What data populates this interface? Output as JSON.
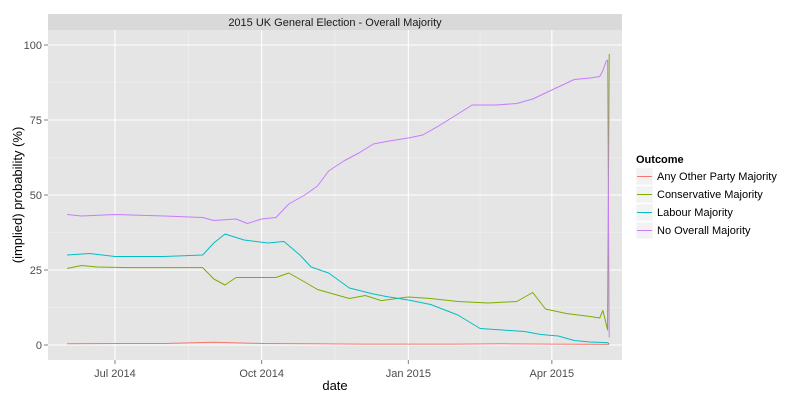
{
  "chart_data": {
    "type": "line",
    "title": "2015 UK General Election - Overall Majority",
    "xlabel": "date",
    "ylabel": "(implied) probability (%)",
    "xlim": [
      "2014-05-20",
      "2015-05-15"
    ],
    "ylim": [
      -5,
      105
    ],
    "xticks": [
      {
        "date": "2014-07-01",
        "label": "Jul 2014"
      },
      {
        "date": "2014-10-01",
        "label": "Oct 2014"
      },
      {
        "date": "2015-01-01",
        "label": "Jan 2015"
      },
      {
        "date": "2015-04-01",
        "label": "Apr 2015"
      }
    ],
    "yticks": [
      0,
      25,
      50,
      75,
      100
    ],
    "grid": true,
    "legend": {
      "title": "Outcome",
      "placement": "right"
    },
    "series": [
      {
        "name": "Any Other Party Majority",
        "color": "#F8766D",
        "points": [
          [
            "2014-06-01",
            0.4
          ],
          [
            "2014-07-01",
            0.5
          ],
          [
            "2014-08-01",
            0.5
          ],
          [
            "2014-09-01",
            0.9
          ],
          [
            "2014-10-01",
            0.5
          ],
          [
            "2014-11-01",
            0.4
          ],
          [
            "2014-12-01",
            0.3
          ],
          [
            "2015-01-01",
            0.3
          ],
          [
            "2015-02-01",
            0.3
          ],
          [
            "2015-03-01",
            0.4
          ],
          [
            "2015-04-01",
            0.3
          ],
          [
            "2015-05-07",
            0.2
          ]
        ]
      },
      {
        "name": "Conservative Majority",
        "color": "#7CAE00",
        "points": [
          [
            "2014-06-01",
            25.5
          ],
          [
            "2014-06-10",
            26.5
          ],
          [
            "2014-06-20",
            26.0
          ],
          [
            "2014-07-10",
            25.8
          ],
          [
            "2014-08-10",
            25.8
          ],
          [
            "2014-08-25",
            25.8
          ],
          [
            "2014-09-01",
            22.0
          ],
          [
            "2014-09-08",
            20.0
          ],
          [
            "2014-09-15",
            22.5
          ],
          [
            "2014-09-25",
            22.5
          ],
          [
            "2014-10-10",
            22.5
          ],
          [
            "2014-10-18",
            24.0
          ],
          [
            "2014-10-28",
            21.0
          ],
          [
            "2014-11-05",
            18.5
          ],
          [
            "2014-11-15",
            17.0
          ],
          [
            "2014-11-25",
            15.5
          ],
          [
            "2014-12-05",
            16.5
          ],
          [
            "2014-12-15",
            14.8
          ],
          [
            "2015-01-01",
            16.0
          ],
          [
            "2015-01-15",
            15.5
          ],
          [
            "2015-02-01",
            14.5
          ],
          [
            "2015-02-20",
            14.0
          ],
          [
            "2015-03-10",
            14.5
          ],
          [
            "2015-03-20",
            17.5
          ],
          [
            "2015-03-28",
            12.0
          ],
          [
            "2015-04-10",
            10.5
          ],
          [
            "2015-04-25",
            9.5
          ],
          [
            "2015-05-01",
            9.0
          ],
          [
            "2015-05-03",
            11.5
          ],
          [
            "2015-05-06",
            5.0
          ],
          [
            "2015-05-07",
            97.0
          ]
        ]
      },
      {
        "name": "Labour Majority",
        "color": "#00BFC4",
        "points": [
          [
            "2014-06-01",
            30.0
          ],
          [
            "2014-06-15",
            30.5
          ],
          [
            "2014-07-01",
            29.5
          ],
          [
            "2014-08-01",
            29.5
          ],
          [
            "2014-08-25",
            30.0
          ],
          [
            "2014-09-01",
            34.0
          ],
          [
            "2014-09-08",
            37.0
          ],
          [
            "2014-09-20",
            35.0
          ],
          [
            "2014-10-05",
            34.0
          ],
          [
            "2014-10-15",
            34.5
          ],
          [
            "2014-10-25",
            30.0
          ],
          [
            "2014-11-01",
            26.0
          ],
          [
            "2014-11-12",
            24.0
          ],
          [
            "2014-11-25",
            19.0
          ],
          [
            "2014-12-10",
            17.0
          ],
          [
            "2014-12-20",
            16.0
          ],
          [
            "2015-01-01",
            15.0
          ],
          [
            "2015-01-15",
            13.5
          ],
          [
            "2015-02-01",
            10.0
          ],
          [
            "2015-02-15",
            5.5
          ],
          [
            "2015-03-01",
            5.0
          ],
          [
            "2015-03-15",
            4.5
          ],
          [
            "2015-03-25",
            3.5
          ],
          [
            "2015-04-05",
            3.0
          ],
          [
            "2015-04-15",
            1.5
          ],
          [
            "2015-04-25",
            1.0
          ],
          [
            "2015-05-06",
            0.8
          ],
          [
            "2015-05-07",
            0.3
          ]
        ]
      },
      {
        "name": "No Overall Majority",
        "color": "#C77CFF",
        "points": [
          [
            "2014-06-01",
            43.5
          ],
          [
            "2014-06-10",
            43.0
          ],
          [
            "2014-07-01",
            43.5
          ],
          [
            "2014-08-01",
            43.0
          ],
          [
            "2014-08-25",
            42.5
          ],
          [
            "2014-09-01",
            41.5
          ],
          [
            "2014-09-15",
            42.0
          ],
          [
            "2014-09-22",
            40.5
          ],
          [
            "2014-10-01",
            42.0
          ],
          [
            "2014-10-10",
            42.5
          ],
          [
            "2014-10-18",
            47.0
          ],
          [
            "2014-10-28",
            50.0
          ],
          [
            "2014-11-05",
            53.0
          ],
          [
            "2014-11-12",
            58.0
          ],
          [
            "2014-11-22",
            61.5
          ],
          [
            "2014-12-01",
            64.0
          ],
          [
            "2014-12-10",
            67.0
          ],
          [
            "2014-12-20",
            68.0
          ],
          [
            "2015-01-01",
            69.0
          ],
          [
            "2015-01-10",
            70.0
          ],
          [
            "2015-01-20",
            73.0
          ],
          [
            "2015-02-01",
            77.0
          ],
          [
            "2015-02-10",
            80.0
          ],
          [
            "2015-02-25",
            80.0
          ],
          [
            "2015-03-10",
            80.5
          ],
          [
            "2015-03-20",
            82.0
          ],
          [
            "2015-04-01",
            85.0
          ],
          [
            "2015-04-15",
            88.5
          ],
          [
            "2015-04-25",
            89.0
          ],
          [
            "2015-05-01",
            89.5
          ],
          [
            "2015-05-03",
            91.5
          ],
          [
            "2015-05-05",
            94.5
          ],
          [
            "2015-05-06",
            95.0
          ],
          [
            "2015-05-07",
            2.5
          ]
        ]
      }
    ]
  }
}
